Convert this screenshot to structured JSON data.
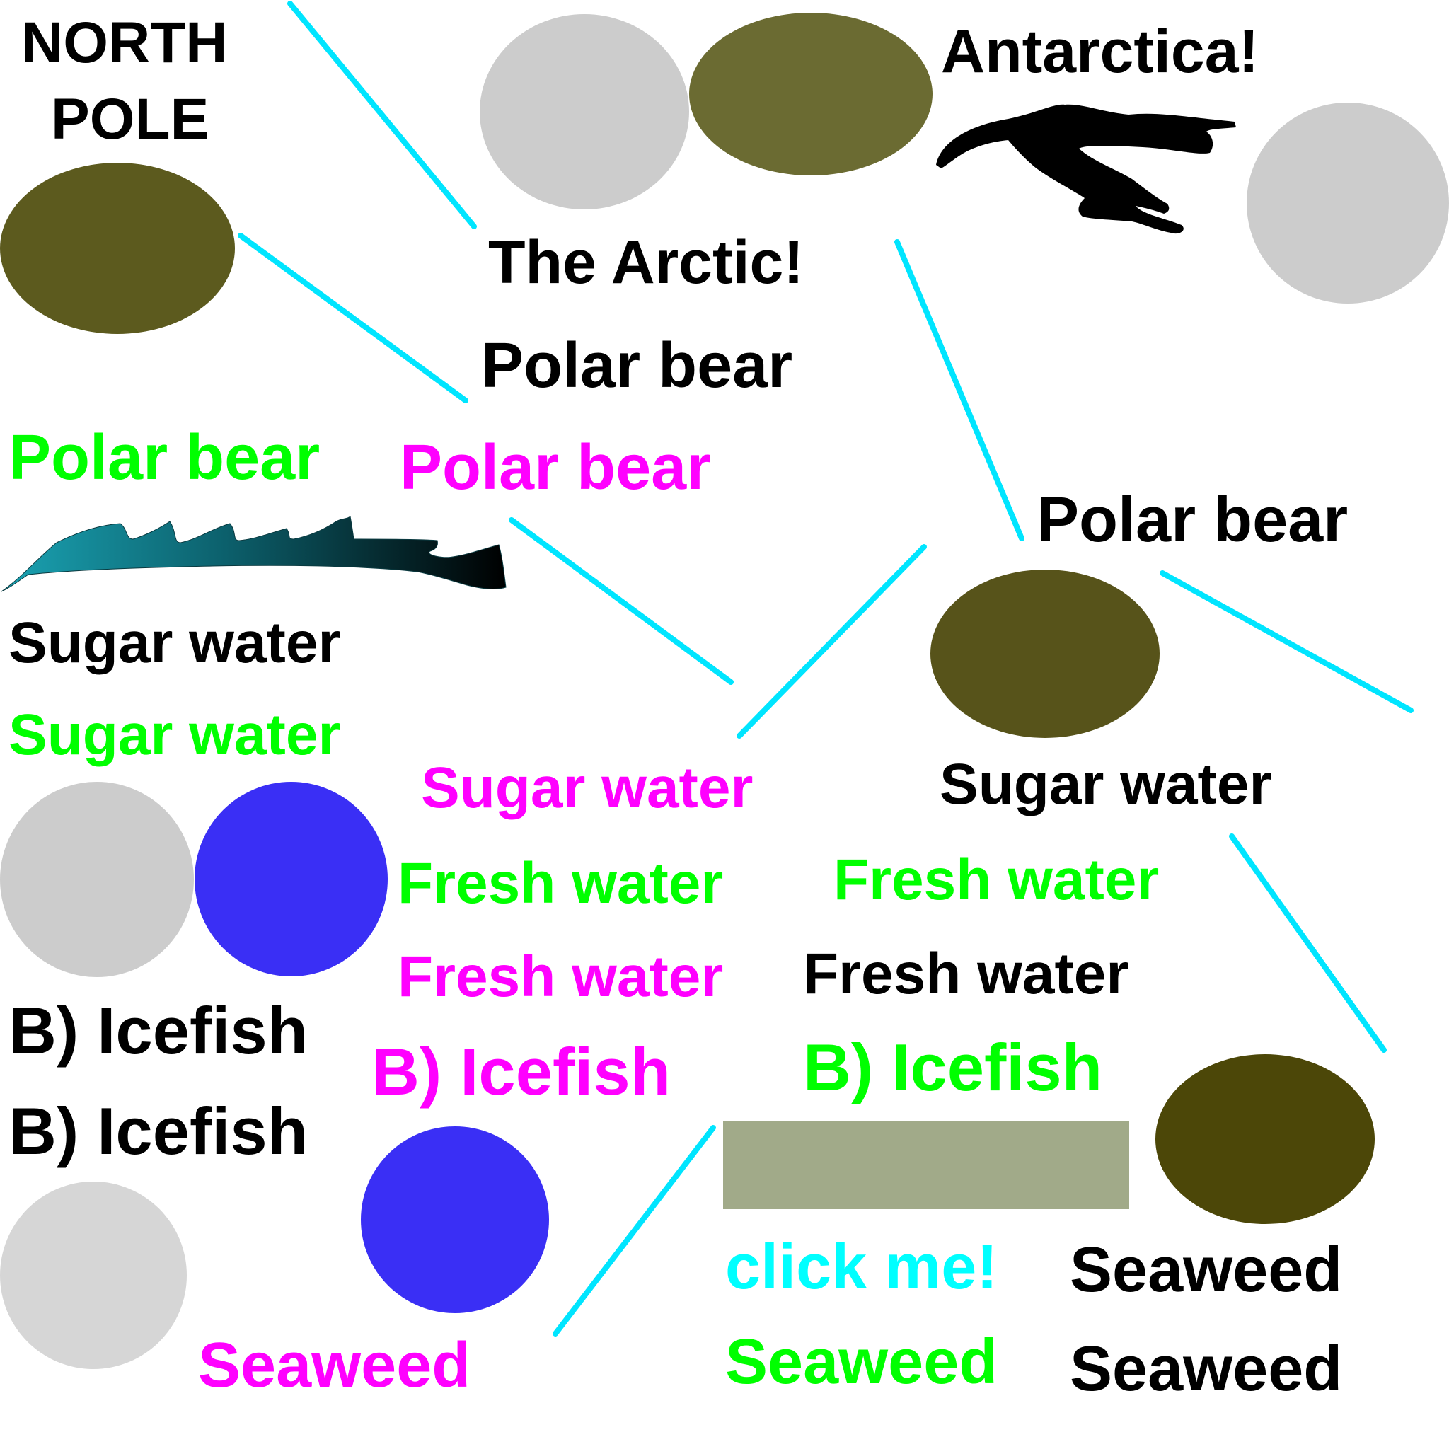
{
  "colors": {
    "black": "#000000",
    "green": "#00ff00",
    "magenta": "#ff00ff",
    "cyan": "#00ffff",
    "line": "#00e5ff",
    "gray_circle": "#cccccc",
    "gray_circle_2": "#d6d6d6",
    "olive_1": "#6b6b32",
    "olive_2": "#5c5a1e",
    "olive_3": "#57531a",
    "olive_4": "#4c4708",
    "blue_circle": "#3a2ff5",
    "sage_rect": "#a1aa89"
  },
  "icons": [
    "polar-bear-silhouette-icon",
    "ocean-wave-icon"
  ],
  "labels": {
    "north_pole_1": "NORTH",
    "north_pole_2": "POLE",
    "antarctica": "Antarctica!",
    "arctic": "The Arctic!",
    "polar_bear_black_top": "Polar bear",
    "polar_bear_green": "Polar bear",
    "polar_bear_magenta": "Polar bear",
    "polar_bear_black_right": "Polar bear",
    "sugar_water_black_left": "Sugar water",
    "sugar_water_green": "Sugar water",
    "sugar_water_magenta": "Sugar water",
    "sugar_water_black_right": "Sugar water",
    "fresh_water_green_left": "Fresh water",
    "fresh_water_green_right": "Fresh water",
    "fresh_water_magenta": "Fresh water",
    "fresh_water_black": "Fresh water",
    "icefish_black_1": "B) Icefish",
    "icefish_black_2": "B) Icefish",
    "icefish_magenta": "B) Icefish",
    "icefish_green": "B) Icefish",
    "click_me": "click me!",
    "seaweed_magenta": "Seaweed",
    "seaweed_green": "Seaweed",
    "seaweed_black_1": "Seaweed",
    "seaweed_black_2": "Seaweed"
  }
}
